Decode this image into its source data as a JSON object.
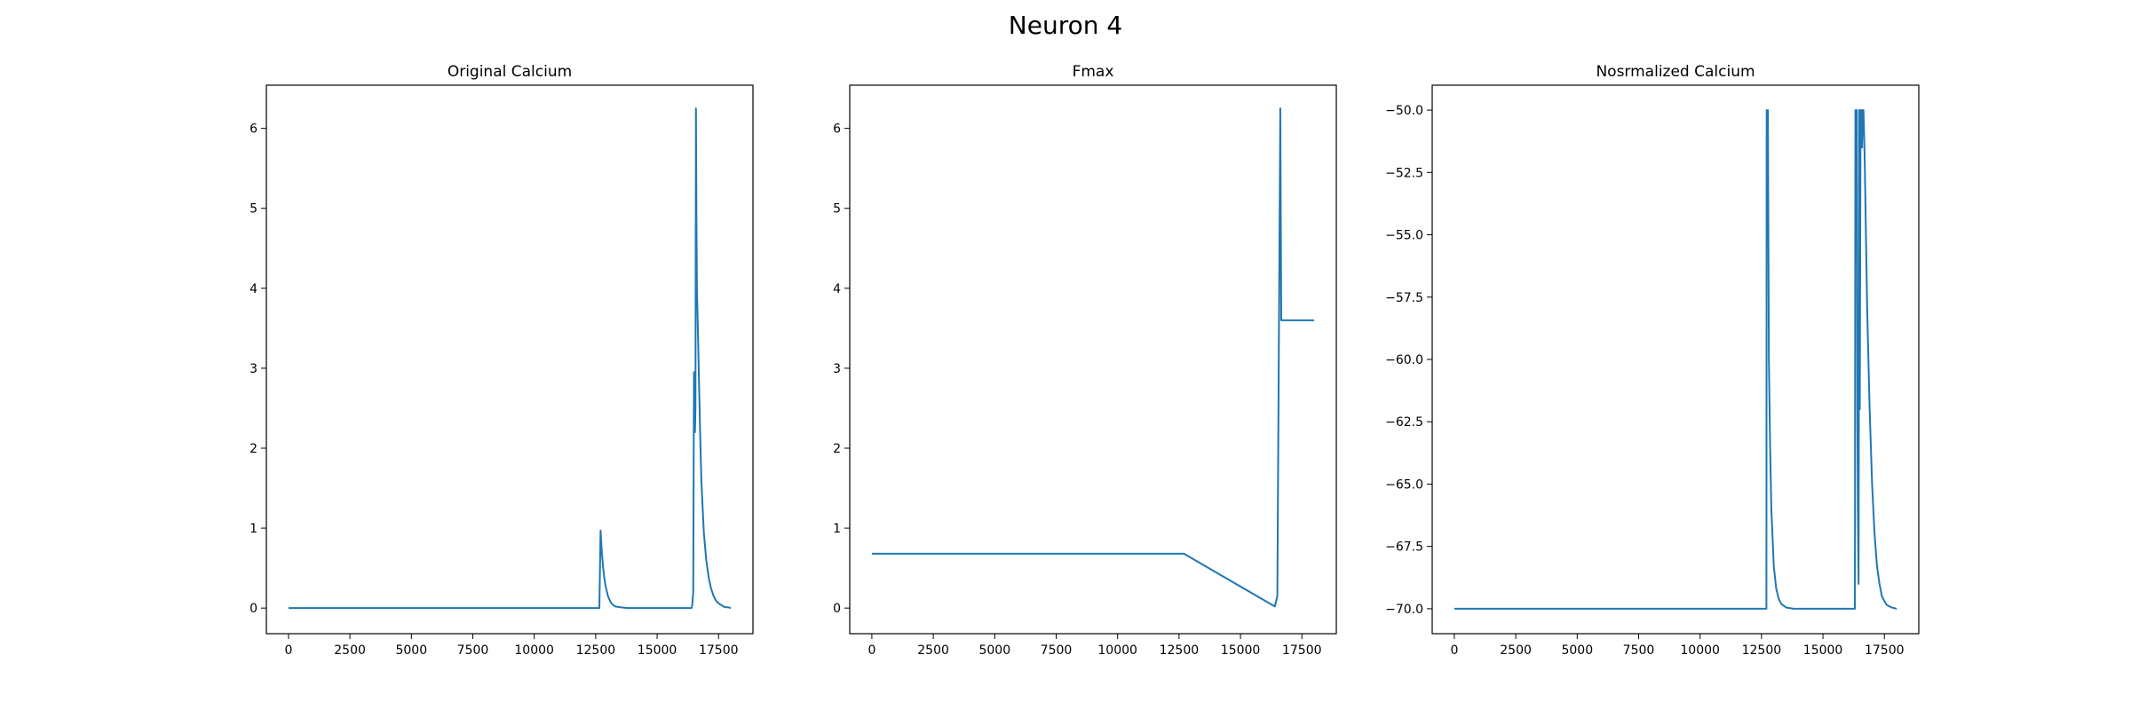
{
  "figure_title": "Neuron 4",
  "colors": {
    "line": "#1f77b4",
    "axes": "#000000",
    "background": "#ffffff"
  },
  "chart_data": [
    {
      "type": "line",
      "title": "Original Calcium",
      "xlabel": "",
      "ylabel": "",
      "xlim": [
        -900,
        18900
      ],
      "ylim": [
        -0.32,
        6.54
      ],
      "xticks": [
        0,
        2500,
        5000,
        7500,
        10000,
        12500,
        15000,
        17500
      ],
      "yticks": [
        0,
        1,
        2,
        3,
        4,
        5,
        6
      ],
      "ytick_labels": [
        "0",
        "1",
        "2",
        "3",
        "4",
        "5",
        "6"
      ],
      "grid": false,
      "series": [
        {
          "x": [
            0,
            12650,
            12700,
            12750,
            12800,
            12850,
            12900,
            13000,
            13100,
            13200,
            13300,
            13500,
            13800,
            14200,
            16400,
            16430,
            16470,
            16500,
            16520,
            16540,
            16560,
            16580,
            16600,
            16620,
            16650,
            16700,
            16750,
            16800,
            16900,
            17000,
            17100,
            17200,
            17300,
            17400,
            17500,
            17600,
            17700,
            17800,
            17900,
            18000
          ],
          "y": [
            0,
            0,
            0.97,
            0.7,
            0.52,
            0.38,
            0.28,
            0.15,
            0.08,
            0.04,
            0.02,
            0.01,
            0.0,
            0.0,
            0.0,
            0.04,
            0.2,
            2.95,
            2.6,
            2.2,
            2.5,
            6.25,
            4.9,
            4.0,
            3.6,
            2.9,
            2.2,
            1.6,
            0.95,
            0.6,
            0.38,
            0.24,
            0.15,
            0.09,
            0.06,
            0.04,
            0.02,
            0.01,
            0.01,
            0.0
          ]
        }
      ]
    },
    {
      "type": "line",
      "title": "Fmax",
      "xlabel": "",
      "ylabel": "",
      "xlim": [
        -900,
        18900
      ],
      "ylim": [
        -0.32,
        6.54
      ],
      "xticks": [
        0,
        2500,
        5000,
        7500,
        10000,
        12500,
        15000,
        17500
      ],
      "yticks": [
        0,
        1,
        2,
        3,
        4,
        5,
        6
      ],
      "ytick_labels": [
        "0",
        "1",
        "2",
        "3",
        "4",
        "5",
        "6"
      ],
      "grid": false,
      "series": [
        {
          "x": [
            0,
            12700,
            16400,
            16500,
            16620,
            16660,
            16700,
            18000
          ],
          "y": [
            0.68,
            0.68,
            0.02,
            0.15,
            6.25,
            3.6,
            3.6,
            3.6
          ]
        }
      ]
    },
    {
      "type": "line",
      "title": "Nosrmalized Calcium",
      "xlabel": "",
      "ylabel": "",
      "xlim": [
        -900,
        18900
      ],
      "ylim": [
        -71.0,
        -49.0
      ],
      "xticks": [
        0,
        2500,
        5000,
        7500,
        10000,
        12500,
        15000,
        17500
      ],
      "yticks": [
        -70.0,
        -67.5,
        -65.0,
        -62.5,
        -60.0,
        -57.5,
        -55.0,
        -52.5,
        -50.0
      ],
      "ytick_labels": [
        "−70.0",
        "−67.5",
        "−65.0",
        "−62.5",
        "−60.0",
        "−57.5",
        "−55.0",
        "−52.5",
        "−50.0"
      ],
      "grid": false,
      "series": [
        {
          "x": [
            0,
            12700,
            12710,
            12760,
            12780,
            12800,
            12850,
            12900,
            13000,
            13100,
            13200,
            13300,
            13500,
            13800,
            14200,
            16300,
            16320,
            16380,
            16400,
            16420,
            16450,
            16480,
            16500,
            16530,
            16560,
            16590,
            16620,
            16650,
            16700,
            16750,
            16800,
            16900,
            17000,
            17100,
            17200,
            17300,
            17400,
            17500,
            17600,
            17700,
            17800,
            18000
          ],
          "y": [
            -70,
            -70,
            -50,
            -50,
            -55,
            -60,
            -63.5,
            -66,
            -68.3,
            -69.2,
            -69.6,
            -69.8,
            -69.95,
            -70,
            -70,
            -70,
            -50,
            -50,
            -62,
            -66,
            -69,
            -50,
            -62,
            -50,
            -50,
            -51.5,
            -50,
            -50,
            -52,
            -55,
            -58,
            -62,
            -65,
            -67,
            -68.3,
            -69,
            -69.5,
            -69.7,
            -69.85,
            -69.9,
            -69.95,
            -70
          ]
        }
      ]
    }
  ]
}
